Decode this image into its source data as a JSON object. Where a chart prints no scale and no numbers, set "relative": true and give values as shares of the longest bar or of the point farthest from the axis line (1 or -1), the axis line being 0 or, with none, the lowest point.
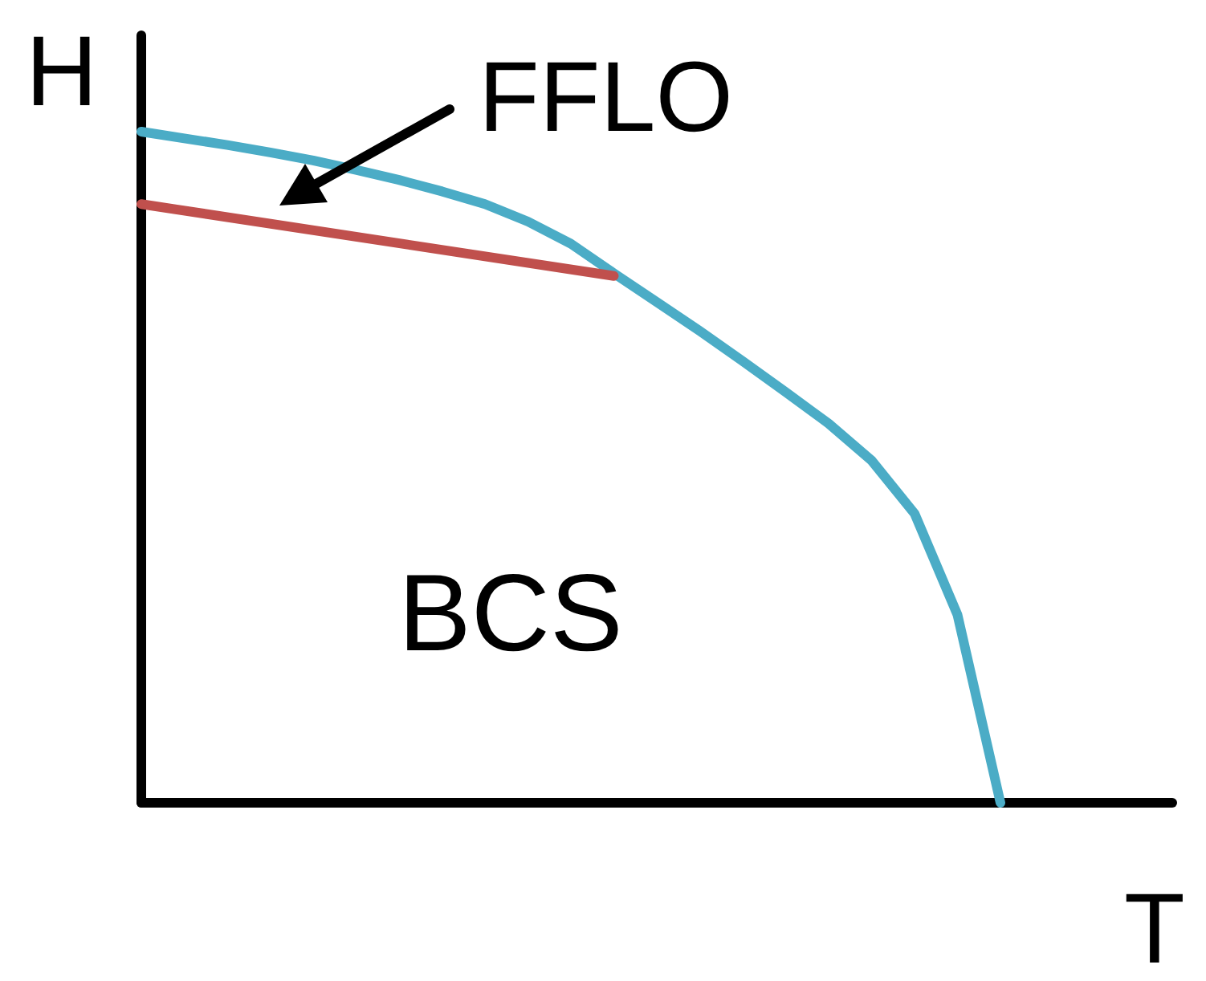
{
  "chart_data": {
    "type": "line",
    "relative": true,
    "xlabel": "T",
    "ylabel": "H",
    "grid": false,
    "marker": "none",
    "line_style": "solid",
    "categories": [
      null,
      null,
      null,
      null,
      null,
      null,
      null,
      null,
      null,
      null,
      null,
      null,
      null,
      null,
      null,
      null,
      null,
      null,
      null,
      null,
      null,
      null,
      null,
      null,
      null
    ],
    "series": [
      {
        "color": "#4bacc6",
        "values": [
          1,
          0.99,
          0.98,
          0.969,
          0.957,
          0.943,
          0.928,
          0.911,
          0.892,
          0.866,
          0.833,
          0.789,
          0.746,
          0.703,
          0.658,
          0.612,
          0.565,
          0.51,
          0.431,
          0.28,
          0,
          null,
          null,
          null,
          null
        ]
      },
      {
        "color": "#c0504d",
        "values": [
          0.892,
          null,
          null,
          null,
          null,
          null,
          null,
          null,
          null,
          null,
          null,
          0.785,
          null,
          null,
          null,
          null,
          null,
          null,
          null,
          null,
          null,
          null,
          null,
          null,
          null
        ]
      }
    ],
    "annotations": [
      "FFLO",
      "BCS"
    ]
  }
}
